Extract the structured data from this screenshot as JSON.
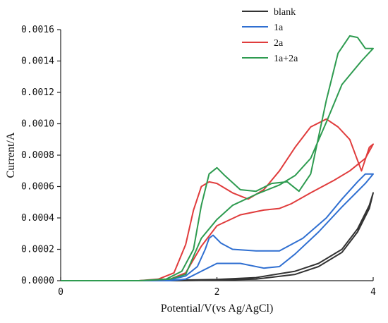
{
  "chart_data": {
    "type": "line",
    "xlabel": "Potential/V(vs Ag/AgCl)",
    "ylabel": "Current/A",
    "xlim": [
      0,
      4
    ],
    "ylim": [
      0,
      0.0016
    ],
    "x_ticks": [
      {
        "value": 0,
        "label": "0"
      },
      {
        "value": 2,
        "label": "2"
      },
      {
        "value": 4,
        "label": "4"
      }
    ],
    "y_ticks": [
      {
        "value": 0,
        "label": "0.0000"
      },
      {
        "value": 0.0002,
        "label": "0.0002"
      },
      {
        "value": 0.0004,
        "label": "0.0004"
      },
      {
        "value": 0.0006,
        "label": "0.0006"
      },
      {
        "value": 0.0008,
        "label": "0.0008"
      },
      {
        "value": 0.001,
        "label": "0.0010"
      },
      {
        "value": 0.0012,
        "label": "0.0012"
      },
      {
        "value": 0.0014,
        "label": "0.0014"
      },
      {
        "value": 0.0016,
        "label": "0.0016"
      }
    ],
    "grid": false,
    "legend_position": "top-right",
    "series": [
      {
        "name": "blank",
        "color": "#333333",
        "points": [
          [
            0,
            0
          ],
          [
            1.0,
            0
          ],
          [
            1.5,
            3e-06
          ],
          [
            2.0,
            8e-06
          ],
          [
            2.5,
            2e-05
          ],
          [
            3.0,
            6e-05
          ],
          [
            3.3,
            0.00011
          ],
          [
            3.6,
            0.0002
          ],
          [
            3.8,
            0.00033
          ],
          [
            3.95,
            0.00048
          ],
          [
            4.0,
            0.00056
          ],
          [
            3.95,
            0.00046
          ],
          [
            3.8,
            0.00031
          ],
          [
            3.6,
            0.00018
          ],
          [
            3.3,
            9e-05
          ],
          [
            3.0,
            4e-05
          ],
          [
            2.5,
            1e-05
          ],
          [
            2.0,
            4e-06
          ],
          [
            1.5,
            0
          ],
          [
            1.0,
            0
          ],
          [
            0,
            0
          ]
        ]
      },
      {
        "name": "1a",
        "color": "#2f6fd1",
        "points": [
          [
            0,
            0
          ],
          [
            1.0,
            0
          ],
          [
            1.4,
            5e-06
          ],
          [
            1.6,
            3e-05
          ],
          [
            1.75,
            9e-05
          ],
          [
            1.85,
            0.0002
          ],
          [
            1.9,
            0.00027
          ],
          [
            1.95,
            0.00029
          ],
          [
            2.05,
            0.00024
          ],
          [
            2.2,
            0.0002
          ],
          [
            2.5,
            0.00019
          ],
          [
            2.8,
            0.00019
          ],
          [
            3.1,
            0.00027
          ],
          [
            3.4,
            0.0004
          ],
          [
            3.6,
            0.00052
          ],
          [
            3.8,
            0.00063
          ],
          [
            3.9,
            0.00068
          ],
          [
            4.0,
            0.00068
          ],
          [
            3.9,
            0.00062
          ],
          [
            3.6,
            0.00047
          ],
          [
            3.3,
            0.00031
          ],
          [
            3.0,
            0.00017
          ],
          [
            2.8,
            9e-05
          ],
          [
            2.6,
            8e-05
          ],
          [
            2.3,
            0.00011
          ],
          [
            2.0,
            0.00011
          ],
          [
            1.8,
            6e-05
          ],
          [
            1.6,
            1e-05
          ],
          [
            1.4,
            0
          ],
          [
            1.0,
            0
          ],
          [
            0,
            0
          ]
        ]
      },
      {
        "name": "2a",
        "color": "#e03c3c",
        "points": [
          [
            0,
            0
          ],
          [
            1.0,
            0
          ],
          [
            1.25,
            1e-05
          ],
          [
            1.45,
            5e-05
          ],
          [
            1.6,
            0.00023
          ],
          [
            1.7,
            0.00045
          ],
          [
            1.8,
            0.0006
          ],
          [
            1.9,
            0.00063
          ],
          [
            2.0,
            0.00062
          ],
          [
            2.2,
            0.00056
          ],
          [
            2.4,
            0.00052
          ],
          [
            2.6,
            0.00058
          ],
          [
            2.8,
            0.0007
          ],
          [
            3.0,
            0.00085
          ],
          [
            3.2,
            0.00098
          ],
          [
            3.4,
            0.00103
          ],
          [
            3.55,
            0.00098
          ],
          [
            3.7,
            0.0009
          ],
          [
            3.85,
            0.0007
          ],
          [
            3.95,
            0.00085
          ],
          [
            4.0,
            0.00087
          ],
          [
            3.9,
            0.00078
          ],
          [
            3.7,
            0.0007
          ],
          [
            3.5,
            0.00064
          ],
          [
            3.2,
            0.00056
          ],
          [
            2.95,
            0.00049
          ],
          [
            2.8,
            0.00046
          ],
          [
            2.6,
            0.00045
          ],
          [
            2.3,
            0.00042
          ],
          [
            2.0,
            0.00035
          ],
          [
            1.8,
            0.00022
          ],
          [
            1.6,
            5e-05
          ],
          [
            1.4,
            1e-05
          ],
          [
            1.0,
            0
          ],
          [
            0,
            0
          ]
        ]
      },
      {
        "name": "1a+2a",
        "color": "#2e9b50",
        "points": [
          [
            0,
            0
          ],
          [
            1.0,
            0
          ],
          [
            1.35,
            1e-05
          ],
          [
            1.55,
            6e-05
          ],
          [
            1.7,
            0.0002
          ],
          [
            1.8,
            0.00048
          ],
          [
            1.9,
            0.00068
          ],
          [
            2.0,
            0.00072
          ],
          [
            2.1,
            0.00067
          ],
          [
            2.3,
            0.00058
          ],
          [
            2.5,
            0.00057
          ],
          [
            2.7,
            0.00062
          ],
          [
            2.9,
            0.00063
          ],
          [
            3.05,
            0.00057
          ],
          [
            3.2,
            0.00068
          ],
          [
            3.4,
            0.00115
          ],
          [
            3.55,
            0.00145
          ],
          [
            3.7,
            0.00156
          ],
          [
            3.8,
            0.00155
          ],
          [
            3.9,
            0.00148
          ],
          [
            4.0,
            0.00148
          ],
          [
            3.85,
            0.0014
          ],
          [
            3.6,
            0.00125
          ],
          [
            3.4,
            0.00101
          ],
          [
            3.2,
            0.00078
          ],
          [
            3.0,
            0.00067
          ],
          [
            2.8,
            0.00061
          ],
          [
            2.5,
            0.00055
          ],
          [
            2.2,
            0.00048
          ],
          [
            2.0,
            0.00039
          ],
          [
            1.8,
            0.00027
          ],
          [
            1.6,
            4e-05
          ],
          [
            1.4,
            1e-05
          ],
          [
            1.0,
            0
          ],
          [
            0,
            0
          ]
        ]
      }
    ]
  }
}
